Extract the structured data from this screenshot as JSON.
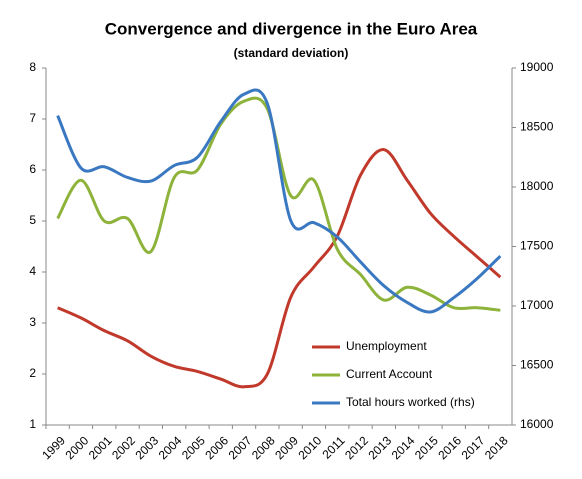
{
  "chart_data": {
    "type": "line",
    "title": "Convergence and divergence in the Euro Area",
    "subtitle": "(standard deviation)",
    "categories": [
      "1999",
      "2000",
      "2001",
      "2002",
      "2003",
      "2004",
      "2005",
      "2006",
      "2007",
      "2008",
      "2009",
      "2010",
      "2011",
      "2012",
      "2013",
      "2014",
      "2015",
      "2016",
      "2017",
      "2018"
    ],
    "series": [
      {
        "name": "Unemployment",
        "color": "#c0392b",
        "values": [
          3.3,
          3.1,
          2.85,
          2.65,
          2.35,
          2.15,
          2.05,
          1.9,
          1.75,
          2.0,
          3.5,
          4.1,
          4.7,
          5.9,
          6.4,
          5.8,
          5.15,
          4.7,
          4.3,
          3.9
        ]
      },
      {
        "name": "Current Account",
        "color": "#8db33a",
        "values": [
          5.05,
          5.8,
          5.0,
          5.05,
          4.4,
          5.85,
          6.0,
          6.9,
          7.35,
          7.2,
          5.5,
          5.8,
          4.45,
          3.95,
          3.45,
          3.7,
          3.55,
          3.3,
          3.3,
          3.25
        ]
      },
      {
        "name": "Total hours worked (rhs)",
        "color": "#3a78c2",
        "axis": "y2",
        "values": [
          18600,
          18160,
          18170,
          18080,
          18050,
          18180,
          18250,
          18550,
          18780,
          18700,
          17720,
          17700,
          17580,
          17370,
          17170,
          17030,
          16950,
          17070,
          17230,
          17420
        ]
      }
    ],
    "ylim": [
      1,
      8
    ],
    "yticks": [
      1,
      2,
      3,
      4,
      5,
      6,
      7,
      8
    ],
    "y2lim": [
      16000,
      19000
    ],
    "y2ticks": [
      16000,
      16500,
      17000,
      17500,
      18000,
      18500,
      19000
    ],
    "legend": "lower right"
  }
}
